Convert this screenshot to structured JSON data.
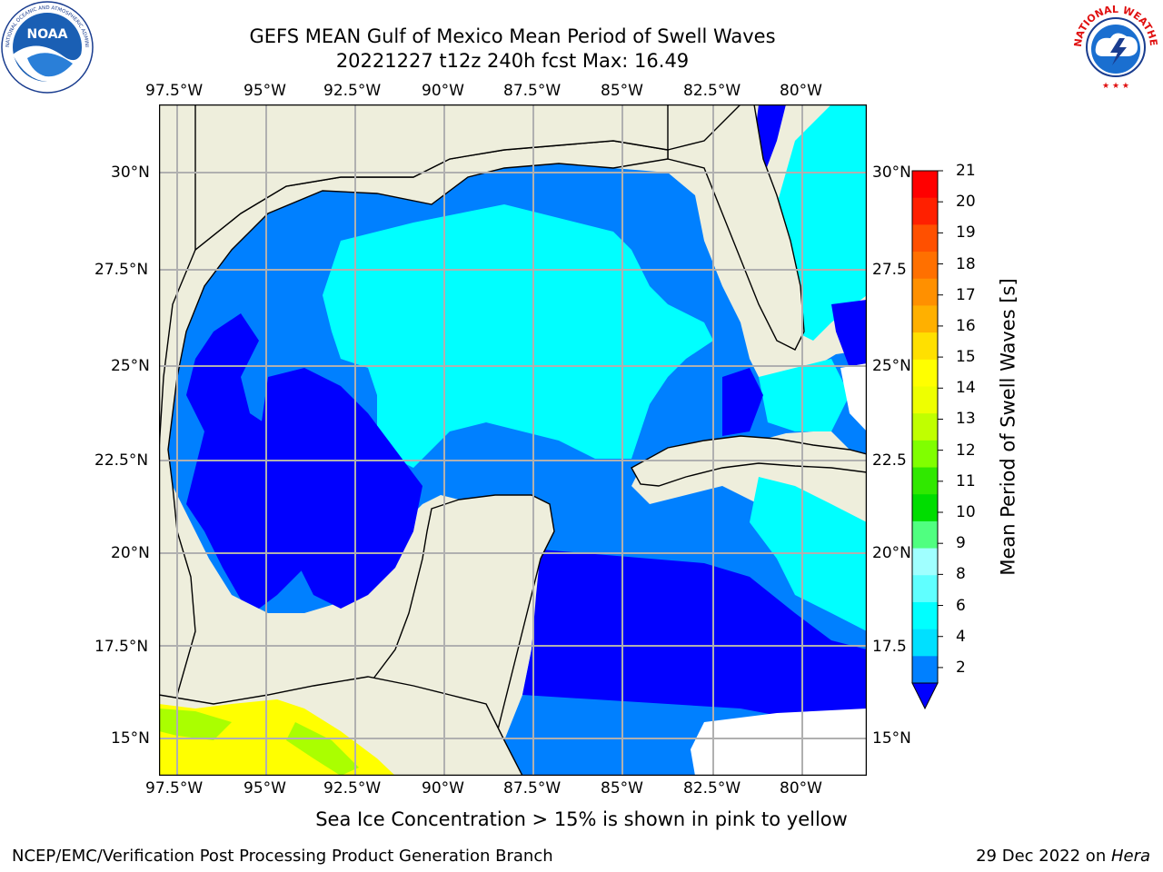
{
  "title": {
    "line1": "GEFS MEAN Gulf of Mexico Mean Period of Swell Waves",
    "line2": "20221227 t12z 240h fcst   Max: 16.49"
  },
  "logos": {
    "left": {
      "text": "NOAA",
      "ring_text": "NATIONAL OCEANIC AND ATMOSPHERIC ADMINISTRATION · U.S. DEPARTMENT OF COMMERCE"
    },
    "right": {
      "ring_text": "NATIONAL WEATHER SERVICE"
    }
  },
  "map": {
    "lon_labels": [
      "97.5°W",
      "95°W",
      "92.5°W",
      "90°W",
      "87.5°W",
      "85°W",
      "82.5°W",
      "80°W"
    ],
    "lat_labels_left": [
      "30°N",
      "27.5°N",
      "25°N",
      "22.5°N",
      "20°N",
      "17.5°N",
      "15°N"
    ],
    "lat_labels_right": [
      "30°N",
      "27.5",
      "25°N",
      "22.5",
      "20°N",
      "17.5",
      "15°N"
    ],
    "colors": {
      "land": "#eeeedc",
      "band_2_4": "#0080ff",
      "band_4_6": "#00ffff",
      "low": "#0000ff",
      "ice_yellow": "#ffff00",
      "ice_green": "#aaff00"
    }
  },
  "colorbar": {
    "title": "Mean Period of Swell Waves [s]",
    "ticks": [
      "21",
      "20",
      "19",
      "18",
      "17",
      "16",
      "15",
      "14",
      "13",
      "12",
      "11",
      "10",
      "9",
      "8",
      "6",
      "4",
      "2"
    ],
    "colors": [
      "#ff0000",
      "#ff2000",
      "#ff5000",
      "#ff7000",
      "#ff9000",
      "#ffb000",
      "#ffe000",
      "#ffff00",
      "#eeff00",
      "#c0ff00",
      "#80ff00",
      "#30e800",
      "#00dd00",
      "#50ff80",
      "#a0ffff",
      "#60ffff",
      "#00ffff",
      "#00e0ff",
      "#0080ff",
      "#0000ff"
    ]
  },
  "caption": "Sea Ice Concentration > 15% is shown in pink to yellow",
  "footer": {
    "left": "NCEP/EMC/Verification Post Processing Product Generation Branch",
    "right_date": "29 Dec 2022 on ",
    "right_host": "Hera"
  }
}
